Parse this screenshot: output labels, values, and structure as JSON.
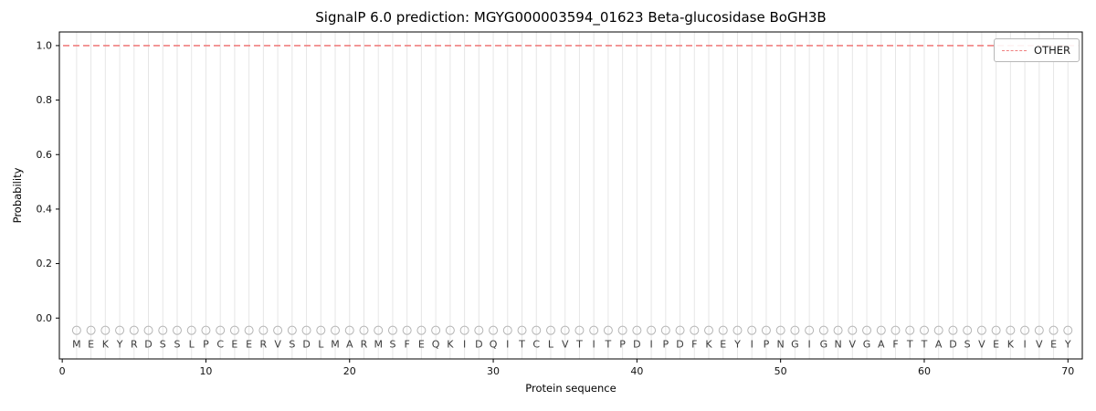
{
  "chart_data": {
    "type": "line",
    "title": "SignalP 6.0 prediction: MGYG000003594_01623 Beta-glucosidase BoGH3B",
    "xlabel": "Protein sequence",
    "ylabel": "Probability",
    "xlim": [
      -0.2,
      71
    ],
    "ylim": [
      -0.15,
      1.05
    ],
    "xticks": [
      0,
      10,
      20,
      30,
      40,
      50,
      60,
      70
    ],
    "yticks": [
      0.0,
      0.2,
      0.4,
      0.6,
      0.8,
      1.0
    ],
    "grid": "vertical-per-residue",
    "legend_position": "upper-right",
    "legend": [
      {
        "label": "OTHER",
        "style": "dashed",
        "color": "#f08080"
      }
    ],
    "series": [
      {
        "name": "OTHER",
        "style": "dashed",
        "color": "#f08080",
        "constant_y": 1.0,
        "x_start": 0,
        "x_end": 71
      }
    ],
    "sequence": "MEKYRDSSLPCEERVSDLMARMSFEQKIDQITCLVTITPDIPDFKEYIPNGIGNVGAFTTADSVEKIVEY",
    "marker_y": -0.045,
    "letter_y": -0.095,
    "colors": {
      "other_line": "#f08080",
      "marker_stroke": "#b5b5b5",
      "letter": "#3a3a3a",
      "gridline": "#e6e6e6",
      "spine": "#000000",
      "tick_label": "#111111"
    }
  }
}
